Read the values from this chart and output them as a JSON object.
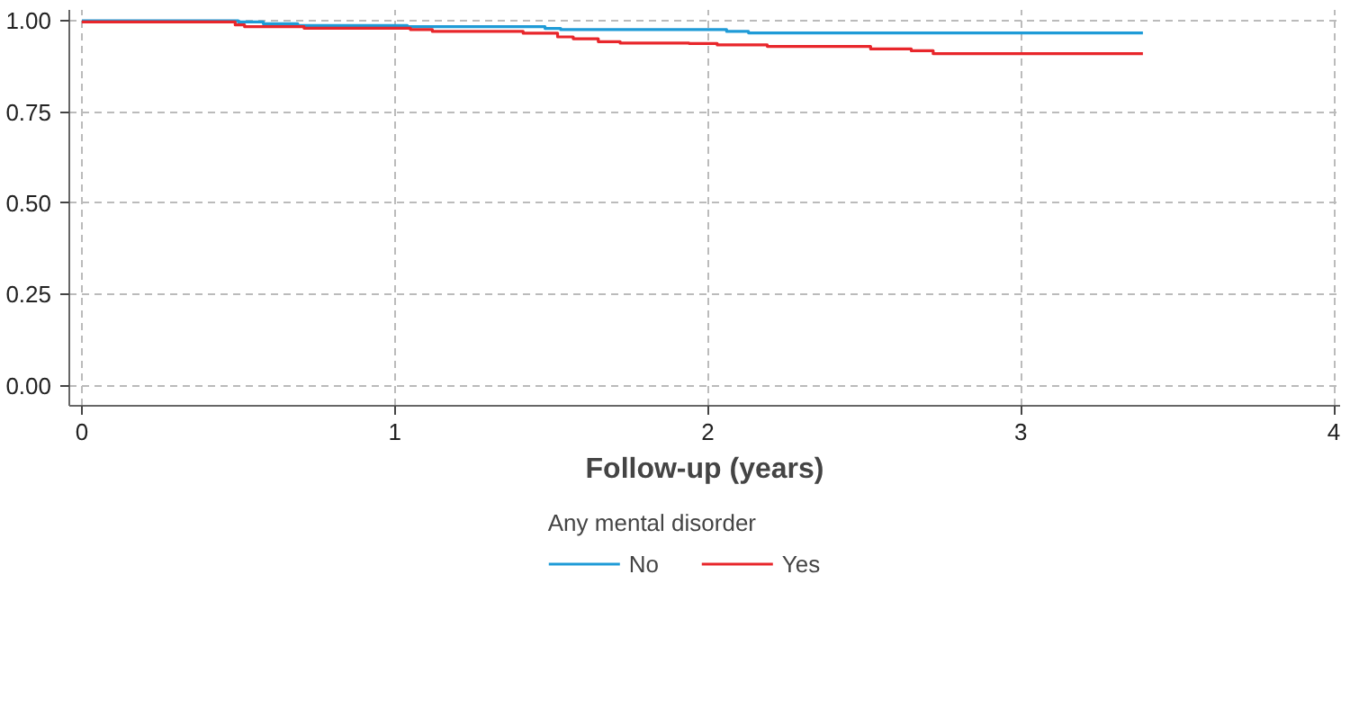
{
  "chart_data": {
    "type": "step",
    "xlabel": "Follow-up (years)",
    "legend_title": "Any mental disorder",
    "legend": "bottom",
    "grid": true,
    "xlim": [
      -0.04,
      4.02
    ],
    "xticks": [
      0,
      1,
      2,
      3,
      4
    ],
    "ylim": [
      -0.055,
      1.03
    ],
    "yticks": [
      {
        "value": 0,
        "label": "0.00"
      },
      {
        "value": 0.25,
        "label": "0.25"
      },
      {
        "value": 0.5,
        "label": "0.50"
      },
      {
        "value": 0.75,
        "label": "0.75"
      },
      {
        "value": 1,
        "label": "1.00"
      }
    ],
    "series": [
      {
        "name": "No",
        "color": "#1f9bd7",
        "x": [
          0,
          0.5,
          0.58,
          0.69,
          1.04,
          1.48,
          1.53,
          2.06,
          2.13,
          3.39
        ],
        "values": [
          1.0,
          0.997,
          0.992,
          0.987,
          0.984,
          0.979,
          0.976,
          0.971,
          0.967,
          0.967
        ]
      },
      {
        "name": "Yes",
        "color": "#e8262b",
        "x": [
          0,
          0.49,
          0.52,
          0.71,
          1.05,
          1.12,
          1.41,
          1.52,
          1.57,
          1.65,
          1.72,
          1.94,
          2.03,
          2.19,
          2.52,
          2.65,
          2.72,
          3.39
        ],
        "values": [
          0.997,
          0.989,
          0.984,
          0.98,
          0.976,
          0.971,
          0.966,
          0.956,
          0.951,
          0.943,
          0.939,
          0.938,
          0.934,
          0.93,
          0.923,
          0.918,
          0.91,
          0.91
        ]
      }
    ]
  }
}
